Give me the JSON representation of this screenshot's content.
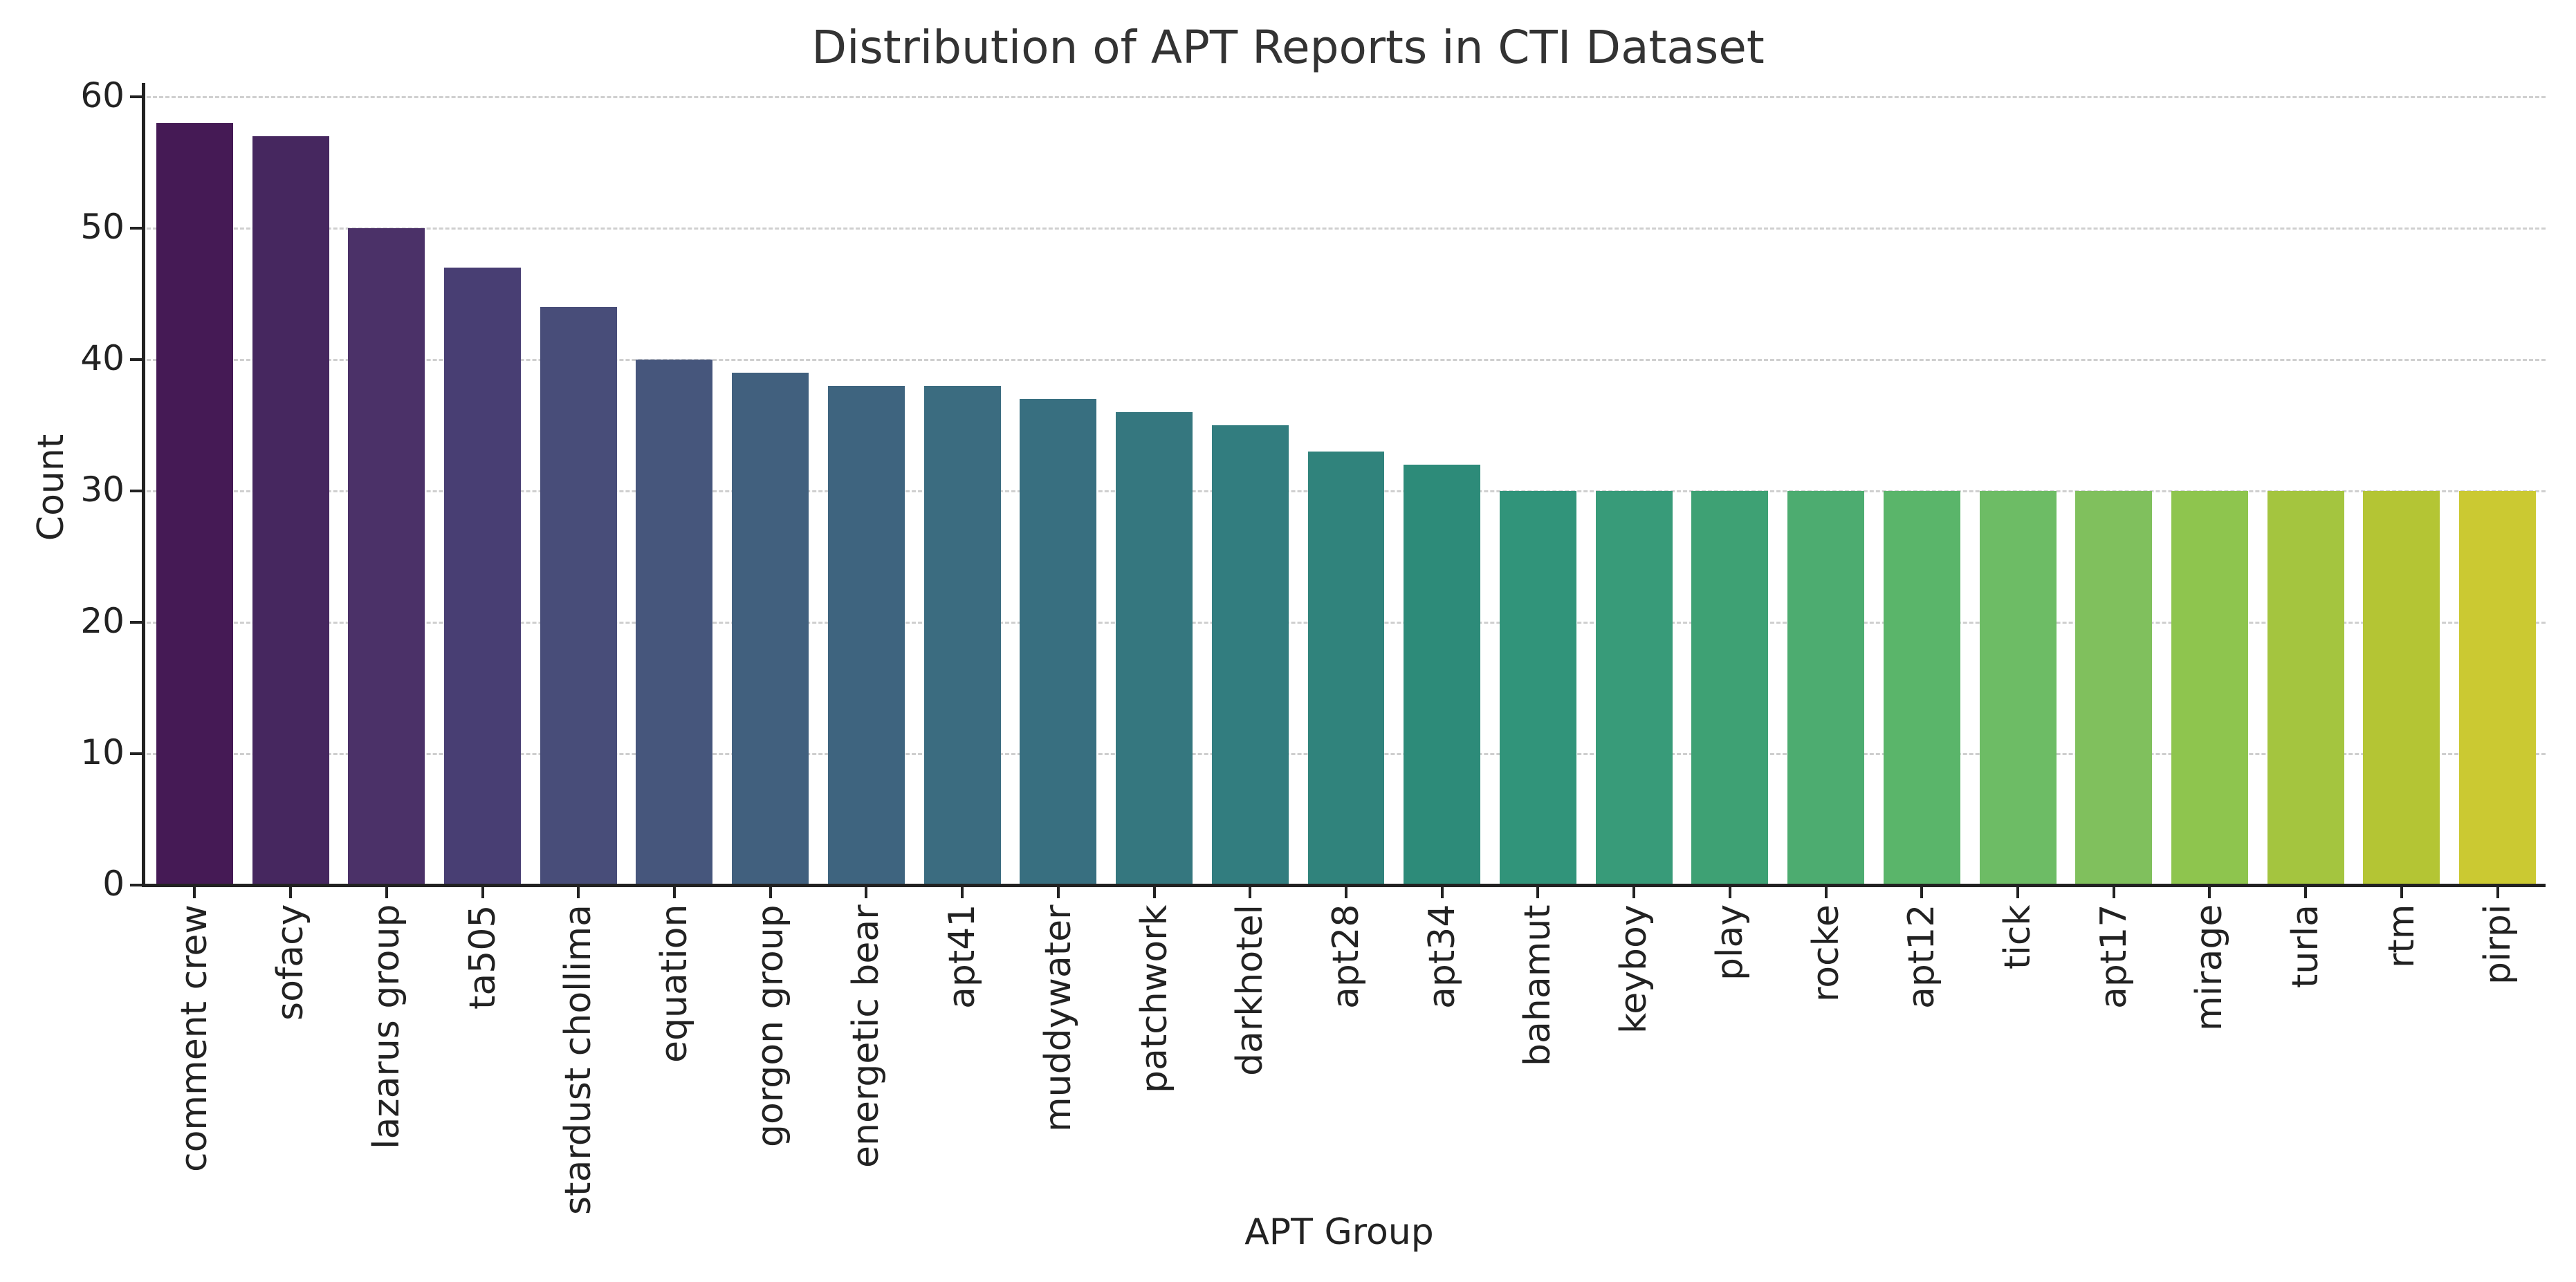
{
  "chart_data": {
    "type": "bar",
    "title": "Distribution of APT Reports in CTI Dataset",
    "xlabel": "APT Group",
    "ylabel": "Count",
    "ylim": [
      0,
      60
    ],
    "yticks": [
      0,
      10,
      20,
      30,
      40,
      50,
      60
    ],
    "grid": "horizontal dashed",
    "legend": "none",
    "categories": [
      "comment crew",
      "sofacy",
      "lazarus group",
      "ta505",
      "stardust chollima",
      "equation",
      "gorgon group",
      "energetic bear",
      "apt41",
      "muddywater",
      "patchwork",
      "darkhotel",
      "apt28",
      "apt34",
      "bahamut",
      "keyboy",
      "play",
      "rocke",
      "apt12",
      "tick",
      "apt17",
      "mirage",
      "turla",
      "rtm",
      "pirpi"
    ],
    "values": [
      58,
      57,
      50,
      47,
      44,
      40,
      39,
      38,
      38,
      37,
      36,
      35,
      33,
      32,
      30,
      30,
      30,
      30,
      30,
      30,
      30,
      30,
      30,
      30,
      30
    ],
    "colors": [
      "#451a55",
      "#46275f",
      "#4b3168",
      "#483e73",
      "#484d79",
      "#46567c",
      "#41607e",
      "#3e647f",
      "#3b6c80",
      "#386f80",
      "#35777f",
      "#327d7f",
      "#30837c",
      "#2d8b79",
      "#31947a",
      "#389b79",
      "#3ea174",
      "#4dac70",
      "#5ab56a",
      "#6dbc65",
      "#80c05d",
      "#8ec54e",
      "#a4c53f",
      "#b4c534",
      "#cbc932"
    ],
    "palette": "viridis"
  }
}
